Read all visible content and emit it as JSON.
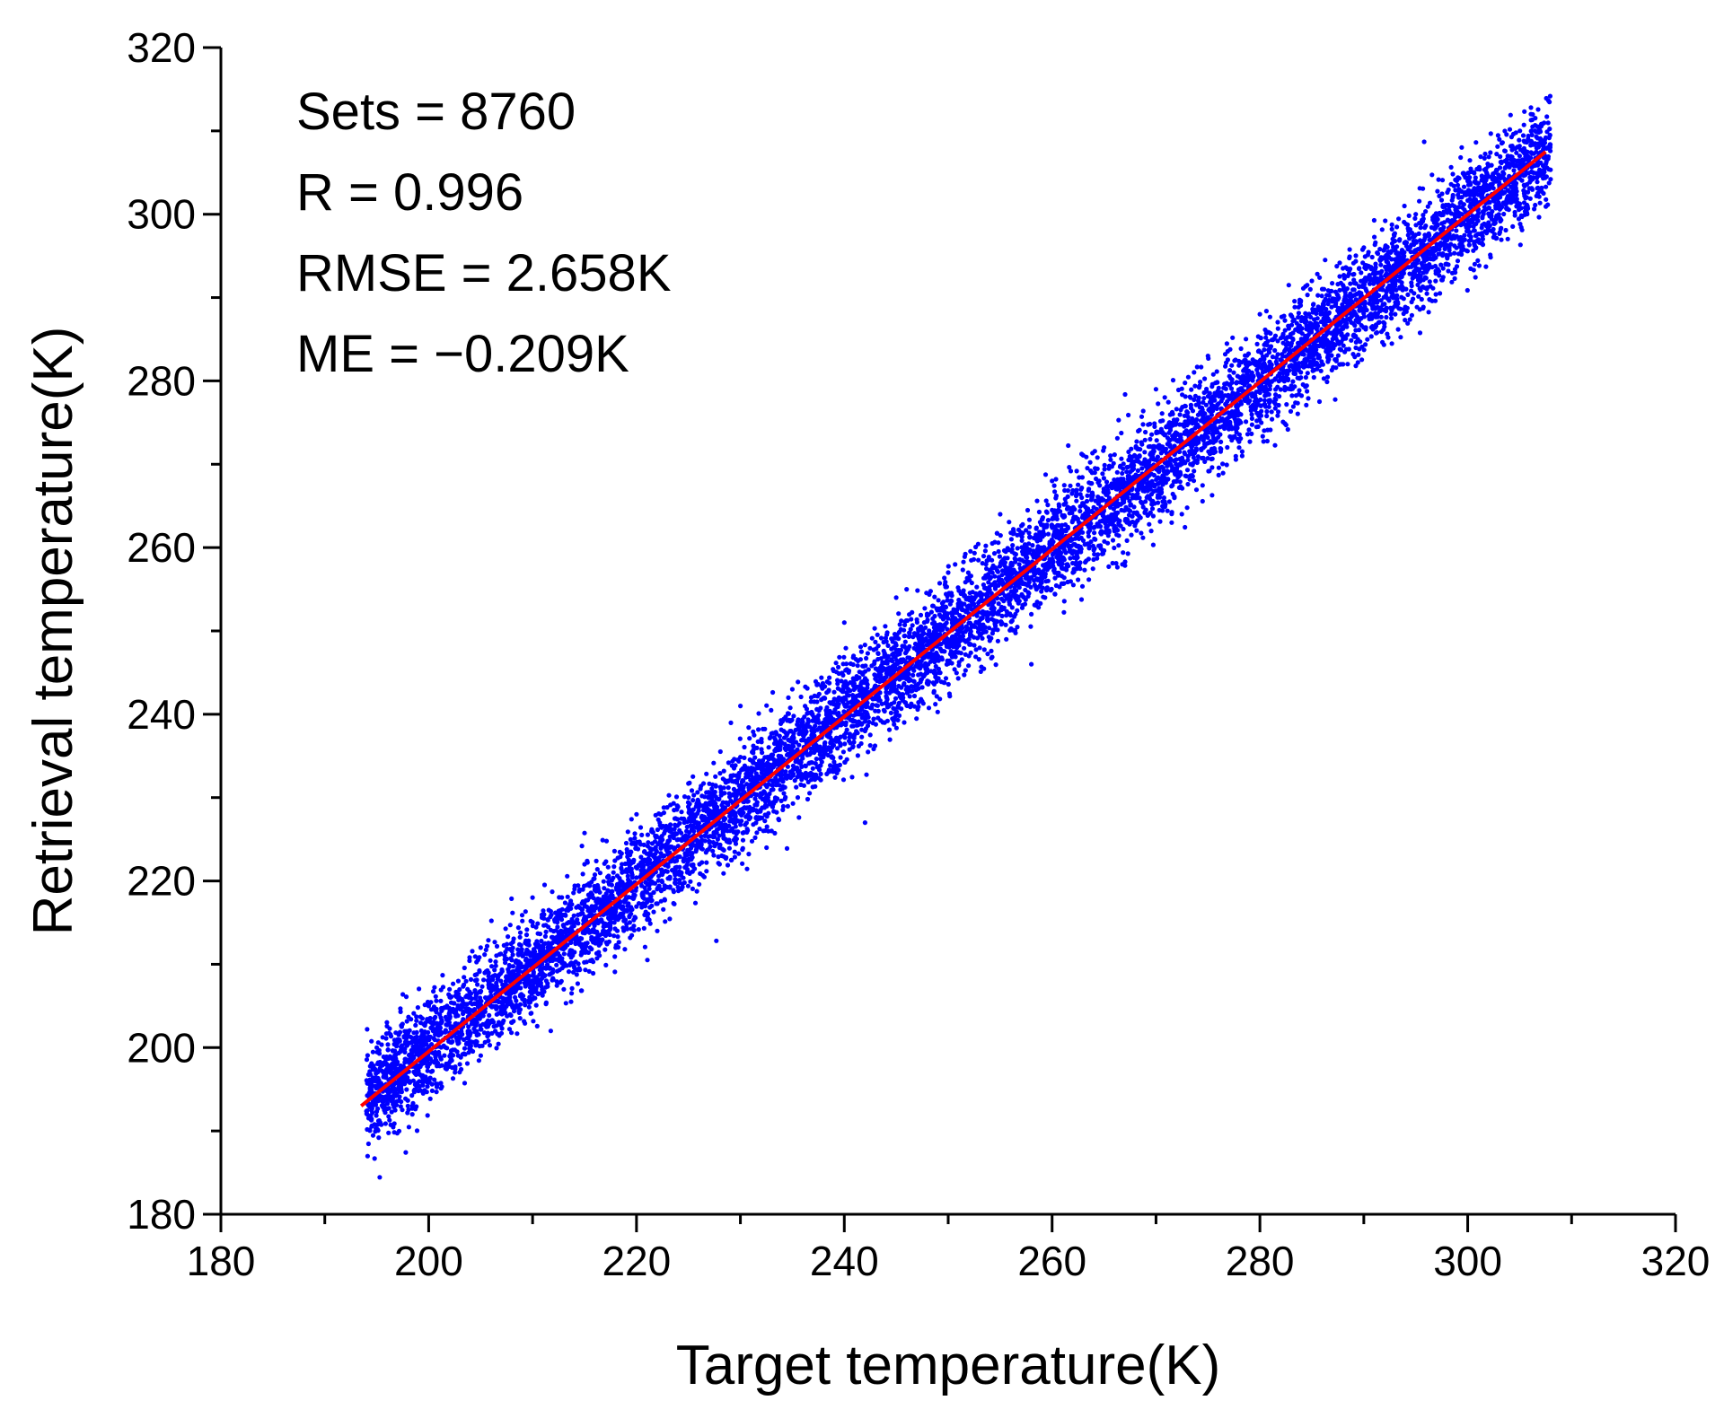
{
  "chart_data": {
    "type": "scatter",
    "xlabel": "Target temperature(K)",
    "ylabel": "Retrieval temperature(K)",
    "xlim": [
      180,
      320
    ],
    "ylim": [
      180,
      320
    ],
    "x_ticks": [
      "180",
      "200",
      "220",
      "240",
      "260",
      "280",
      "300",
      "320"
    ],
    "y_ticks": [
      "180",
      "200",
      "220",
      "240",
      "260",
      "280",
      "300",
      "320"
    ],
    "grid": false,
    "annotations": [
      "Sets = 8760",
      "R = 0.996",
      "RMSE = 2.658K",
      "ME = −0.209K"
    ],
    "scatter_color": "#0000ff",
    "fit_color": "#ff0000",
    "scatter_extent": {
      "x_min": 194,
      "x_max": 308,
      "spread_K": 2.658,
      "bias_K": -0.209
    },
    "series": [
      {
        "type": "scatter",
        "points": [
          [
            195,
            200
          ],
          [
            198,
            193
          ],
          [
            200,
            205
          ],
          [
            203,
            198
          ],
          [
            205,
            212
          ],
          [
            208,
            203
          ],
          [
            210,
            218
          ],
          [
            213,
            207
          ],
          [
            215,
            222
          ],
          [
            218,
            212
          ],
          [
            220,
            228
          ],
          [
            222,
            214
          ],
          [
            225,
            230
          ],
          [
            228,
            222
          ],
          [
            230,
            241
          ],
          [
            233,
            226
          ],
          [
            235,
            243
          ],
          [
            238,
            235
          ],
          [
            240,
            251
          ],
          [
            242,
            227
          ],
          [
            245,
            254
          ],
          [
            248,
            244
          ],
          [
            250,
            257
          ],
          [
            252,
            247
          ],
          [
            255,
            264
          ],
          [
            258,
            252
          ],
          [
            260,
            268
          ],
          [
            262,
            257
          ],
          [
            265,
            272
          ],
          [
            268,
            263
          ],
          [
            270,
            279
          ],
          [
            272,
            268
          ],
          [
            275,
            283
          ],
          [
            278,
            272
          ],
          [
            280,
            288
          ],
          [
            283,
            279
          ],
          [
            285,
            292
          ],
          [
            288,
            282
          ],
          [
            290,
            296
          ],
          [
            293,
            289
          ],
          [
            295,
            300
          ],
          [
            298,
            294
          ],
          [
            300,
            304
          ],
          [
            302,
            299
          ],
          [
            305,
            307
          ],
          [
            307,
            309
          ],
          [
            258,
            246
          ],
          [
            246,
            255
          ],
          [
            266,
            262
          ],
          [
            202,
            207
          ]
        ]
      },
      {
        "type": "line",
        "x": [
          193.5,
          307.5
        ],
        "y": [
          193,
          307.5
        ]
      }
    ]
  }
}
